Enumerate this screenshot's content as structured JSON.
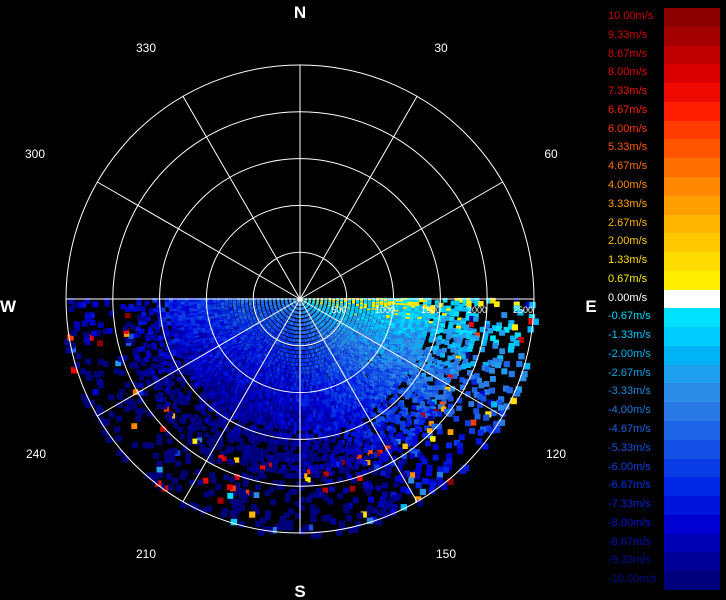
{
  "chart_data": {
    "type": "polar-radar-scan",
    "compass_labels": {
      "north": "N",
      "east": "E",
      "south": "S",
      "west": "W"
    },
    "azimuth_labels": [
      "30",
      "60",
      "120",
      "150",
      "210",
      "240",
      "300",
      "330"
    ],
    "range_rings": [
      500,
      1000,
      1500,
      2000,
      2500
    ],
    "range_labels": [
      "500",
      "1000",
      "1500",
      "2000",
      "2500"
    ],
    "range_max": 2500,
    "sector_deg": [
      90,
      270
    ],
    "grid": true,
    "colorbar": {
      "position": "right",
      "entries": [
        {
          "label": "10.00m/s",
          "color": "#8b0000",
          "text_color": "#cc0000"
        },
        {
          "label": "9.33m/s",
          "color": "#a50000",
          "text_color": "#cc0000"
        },
        {
          "label": "8.67m/s",
          "color": "#c00000",
          "text_color": "#d40000"
        },
        {
          "label": "8.00m/s",
          "color": "#db0000",
          "text_color": "#e00000"
        },
        {
          "label": "7.33m/s",
          "color": "#ee0a00",
          "text_color": "#ee1100"
        },
        {
          "label": "6.67m/s",
          "color": "#ff1e00",
          "text_color": "#ff2200"
        },
        {
          "label": "6.00m/s",
          "color": "#ff3c00",
          "text_color": "#ff3a00"
        },
        {
          "label": "5.33m/s",
          "color": "#ff5500",
          "text_color": "#ff5500"
        },
        {
          "label": "4.67m/s",
          "color": "#ff6e00",
          "text_color": "#ff6e00"
        },
        {
          "label": "4.00m/s",
          "color": "#ff8800",
          "text_color": "#ff8a00"
        },
        {
          "label": "3.33m/s",
          "color": "#ffa000",
          "text_color": "#ffa000"
        },
        {
          "label": "2.67m/s",
          "color": "#ffb400",
          "text_color": "#ffb400"
        },
        {
          "label": "2.00m/s",
          "color": "#ffc800",
          "text_color": "#ffc800"
        },
        {
          "label": "1.33m/s",
          "color": "#ffdc00",
          "text_color": "#ffdc00"
        },
        {
          "label": "0.67m/s",
          "color": "#ffee00",
          "text_color": "#ffee00"
        },
        {
          "label": "0.00m/s",
          "color": "#ffffff",
          "text_color": "#ffffff"
        },
        {
          "label": "-0.67m/s",
          "color": "#00e0ff",
          "text_color": "#00d8ff"
        },
        {
          "label": "-1.33m/s",
          "color": "#00ccff",
          "text_color": "#00c8ff"
        },
        {
          "label": "-2.00m/s",
          "color": "#00b4f5",
          "text_color": "#00b4f0"
        },
        {
          "label": "-2.67m/s",
          "color": "#1ea0ee",
          "text_color": "#10a0e8"
        },
        {
          "label": "-3.33m/s",
          "color": "#2a8ce6",
          "text_color": "#1a8ce0"
        },
        {
          "label": "-4.00m/s",
          "color": "#2878e6",
          "text_color": "#1a78e0"
        },
        {
          "label": "-4.67m/s",
          "color": "#1e64e6",
          "text_color": "#1464e0"
        },
        {
          "label": "-5.33m/s",
          "color": "#1450e6",
          "text_color": "#1050e0"
        },
        {
          "label": "-6.00m/s",
          "color": "#0a3ce6",
          "text_color": "#0a40e0"
        },
        {
          "label": "-6.67m/s",
          "color": "#0028e6",
          "text_color": "#0030e0"
        },
        {
          "label": "-7.33m/s",
          "color": "#0014dc",
          "text_color": "#0020d8"
        },
        {
          "label": "-8.00m/s",
          "color": "#0000d2",
          "text_color": "#0014d0"
        },
        {
          "label": "-8.67m/s",
          "color": "#0000b4",
          "text_color": "#0010b8"
        },
        {
          "label": "-9.33m/s",
          "color": "#000096",
          "text_color": "#000ca0"
        },
        {
          "label": "-10.00m/s",
          "color": "#00007d",
          "text_color": "#000a90"
        }
      ]
    }
  }
}
